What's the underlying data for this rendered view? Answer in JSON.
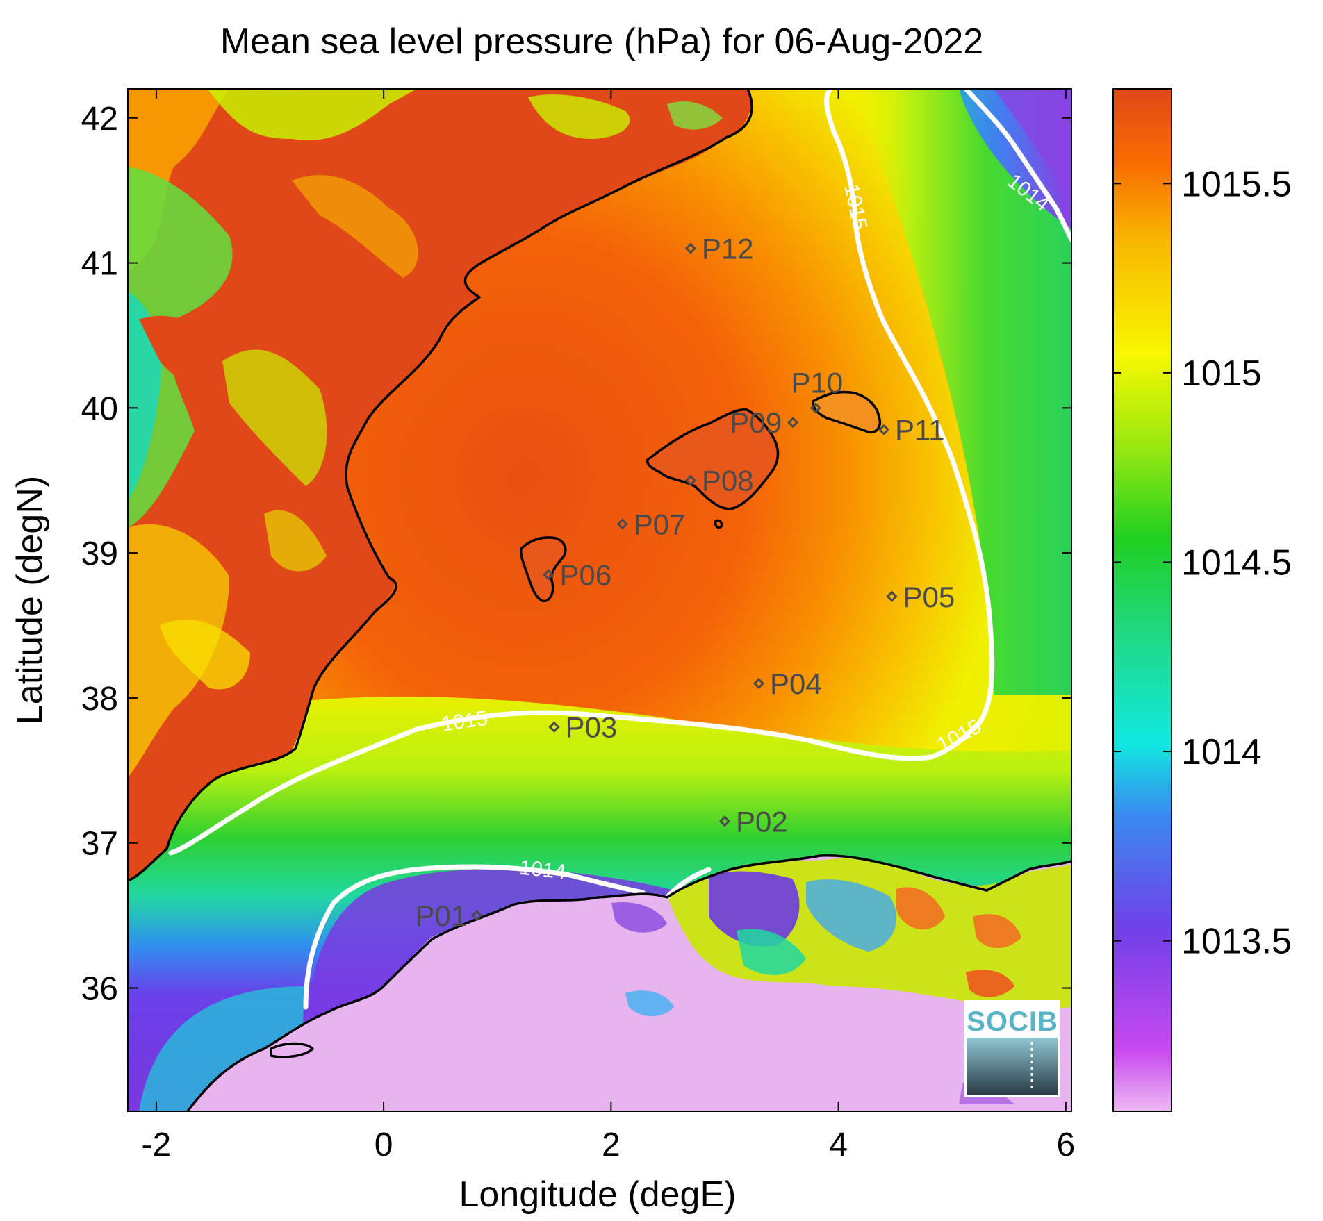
{
  "chart_data": {
    "type": "heatmap",
    "title": "Mean sea level pressure (hPa) for 06-Aug-2022",
    "xlabel": "Longitude (degE)",
    "ylabel": "Latitude (degN)",
    "xlim": [
      -2.25,
      6.05
    ],
    "ylim": [
      35.15,
      42.2
    ],
    "x_ticks": [
      -2,
      0,
      2,
      4,
      6
    ],
    "x_tick_labels": [
      "-2",
      "0",
      "2",
      "4",
      "6"
    ],
    "y_ticks": [
      36,
      37,
      38,
      39,
      40,
      41,
      42
    ],
    "y_tick_labels": [
      "36",
      "37",
      "38",
      "39",
      "40",
      "41",
      "42"
    ],
    "colorbar": {
      "min": 1013.05,
      "max": 1015.75,
      "ticks": [
        1013.5,
        1014,
        1014.5,
        1015,
        1015.5
      ],
      "tick_labels": [
        "1013.5",
        "1014",
        "1014.5",
        "1015",
        "1015.5"
      ],
      "colormap": [
        "#e8b4f0",
        "#c048f0",
        "#7040e8",
        "#3a8af0",
        "#10e0e0",
        "#20d870",
        "#30d030",
        "#b8f010",
        "#f8f800",
        "#f8b800",
        "#f87000",
        "#e04818"
      ]
    },
    "contours": [
      {
        "level": 1015,
        "label": "1015"
      },
      {
        "level": 1014,
        "label": "1014"
      }
    ],
    "stations": [
      {
        "name": "P01",
        "lon": 0.82,
        "lat": 36.5
      },
      {
        "name": "P02",
        "lon": 3.0,
        "lat": 37.15
      },
      {
        "name": "P03",
        "lon": 1.5,
        "lat": 37.8
      },
      {
        "name": "P04",
        "lon": 3.3,
        "lat": 38.1
      },
      {
        "name": "P05",
        "lon": 4.47,
        "lat": 38.7
      },
      {
        "name": "P06",
        "lon": 1.45,
        "lat": 38.85
      },
      {
        "name": "P07",
        "lon": 2.1,
        "lat": 39.2
      },
      {
        "name": "P08",
        "lon": 2.7,
        "lat": 39.5
      },
      {
        "name": "P09",
        "lon": 3.6,
        "lat": 39.9
      },
      {
        "name": "P10",
        "lon": 3.8,
        "lat": 40.0
      },
      {
        "name": "P11",
        "lon": 4.4,
        "lat": 39.85
      },
      {
        "name": "P12",
        "lon": 2.7,
        "lat": 41.1
      }
    ]
  },
  "logo": {
    "text": "SOCIB"
  },
  "colors": {
    "land_high": "#e04818",
    "sea_high": "#f05a10",
    "coastline": "#000000",
    "contour": "#ffffff",
    "station_marker": "#4a4a4a",
    "logo_accent": "#5ab4c8"
  }
}
